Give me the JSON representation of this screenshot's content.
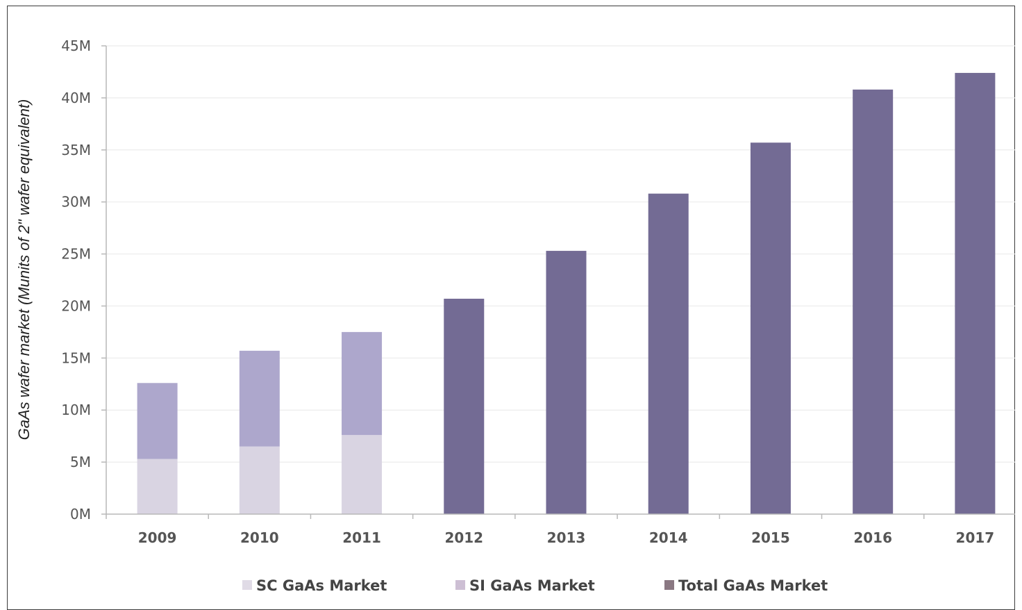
{
  "chart_data": {
    "type": "bar",
    "stacked": true,
    "categories": [
      "2009",
      "2010",
      "2011",
      "2012",
      "2013",
      "2014",
      "2015",
      "2016",
      "2017"
    ],
    "series": [
      {
        "name": "SC GaAs Market",
        "color": "#d9d4e2",
        "values": [
          5.3,
          6.5,
          7.6,
          null,
          null,
          null,
          null,
          null,
          null
        ]
      },
      {
        "name": "SI GaAs Market",
        "color": "#ada7cc",
        "values": [
          7.3,
          9.2,
          9.9,
          null,
          null,
          null,
          null,
          null,
          null
        ]
      },
      {
        "name": "Total GaAs Market",
        "color": "#736b94",
        "values": [
          null,
          null,
          null,
          20.7,
          25.3,
          30.8,
          35.7,
          40.8,
          42.4
        ]
      }
    ],
    "legend_swatches": [
      "#e0dbe6",
      "#cdbfd4",
      "#8a7882"
    ],
    "ylabel": "GaAs wafer market (Munits of 2\" wafer equivalent)",
    "yticks": [
      "0M",
      "5M",
      "10M",
      "15M",
      "20M",
      "25M",
      "30M",
      "35M",
      "40M",
      "45M"
    ],
    "ylim": [
      0,
      45
    ],
    "grid": true,
    "legend_position": "bottom"
  }
}
